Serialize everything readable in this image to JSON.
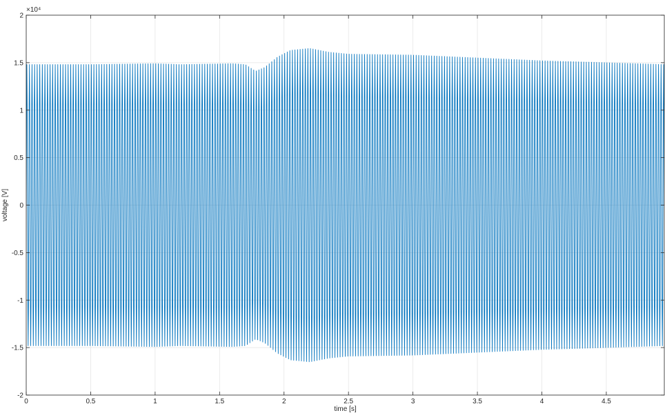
{
  "chart_data": {
    "type": "line",
    "title": "",
    "xlabel": "time [s]",
    "ylabel": "voltage [V]",
    "exponent_label": "×10⁴",
    "xlim": [
      0,
      4.95
    ],
    "ylim": [
      -20000,
      20000
    ],
    "xticks": [
      0,
      0.5,
      1,
      1.5,
      2,
      2.5,
      3,
      3.5,
      4,
      4.5
    ],
    "xtick_labels": [
      "0",
      "0.5",
      "1",
      "1.5",
      "2",
      "2.5",
      "3",
      "3.5",
      "4",
      "4.5"
    ],
    "yticks": [
      -20000,
      -15000,
      -10000,
      -5000,
      0,
      5000,
      10000,
      15000,
      20000
    ],
    "ytick_labels": [
      "-2",
      "-1.5",
      "-1",
      "-0.5",
      "0",
      "0.5",
      "1",
      "1.5",
      "2"
    ],
    "grid": true,
    "series": [
      {
        "color": "#0072BD",
        "signal": "sinusoid",
        "frequency_hz": 50,
        "envelope": {
          "t": [
            0,
            0.5,
            1.0,
            1.2,
            1.6,
            1.7,
            1.78,
            1.85,
            1.95,
            2.05,
            2.2,
            2.35,
            2.5,
            3.0,
            3.5,
            4.0,
            4.5,
            4.95
          ],
          "amplitude": [
            14800,
            14800,
            14900,
            14800,
            14900,
            14800,
            14100,
            14500,
            15600,
            16300,
            16500,
            16100,
            15900,
            15800,
            15500,
            15200,
            15000,
            14800
          ]
        }
      }
    ]
  }
}
